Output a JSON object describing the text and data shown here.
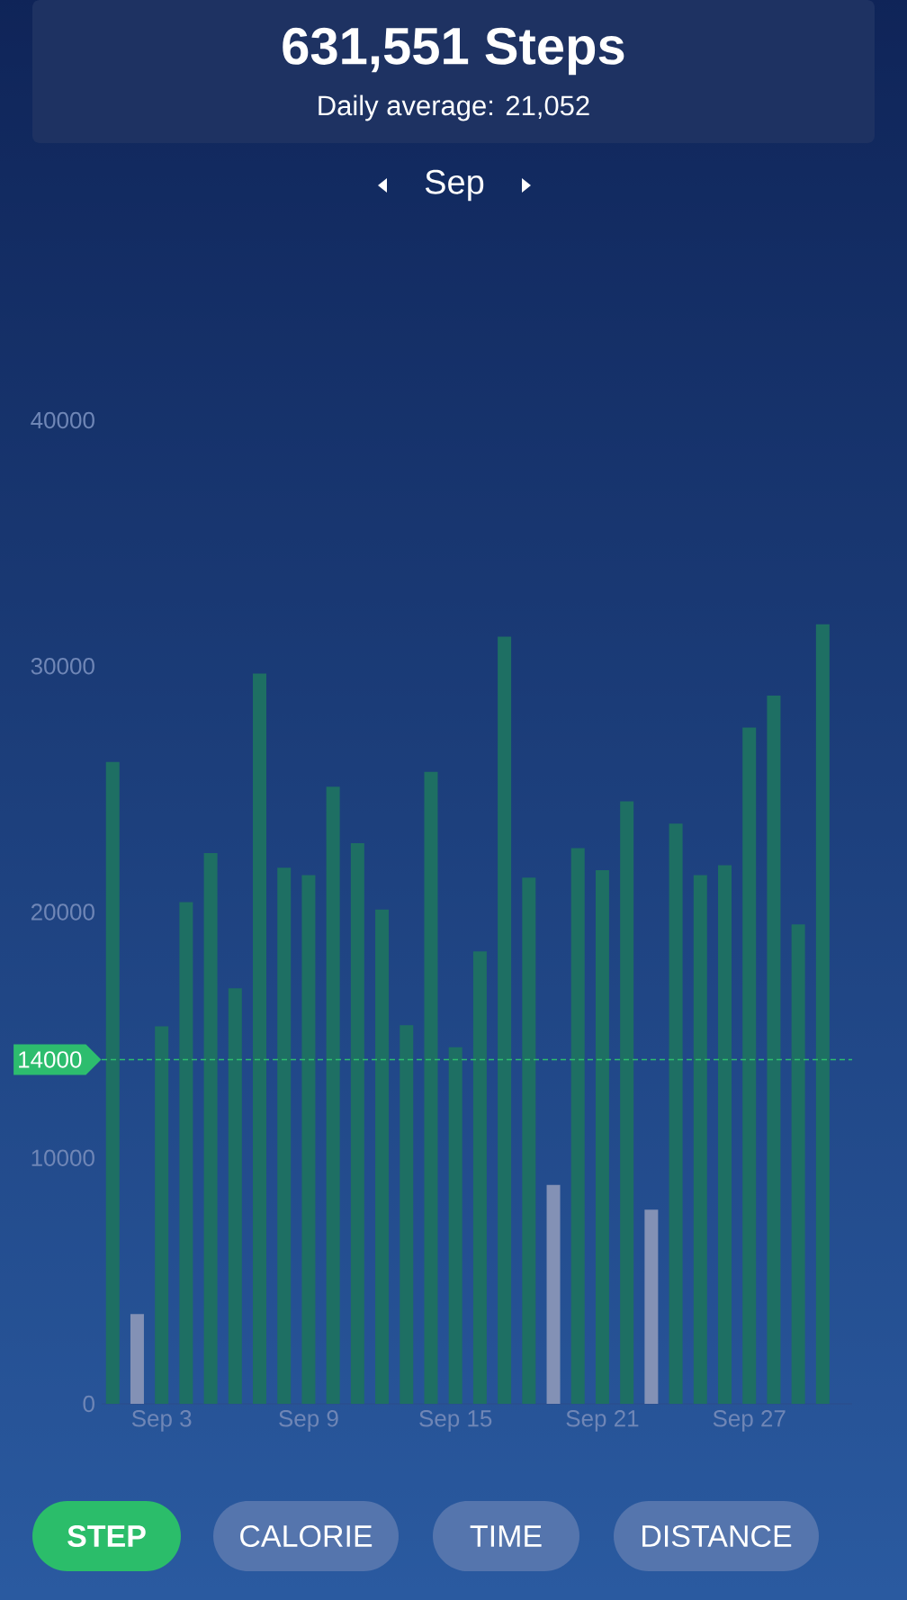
{
  "chart_data": {
    "type": "bar",
    "title": "631,551 Steps",
    "subtitle": "Daily average:   21,052",
    "categories": [
      null,
      null,
      "Sep 3",
      null,
      null,
      null,
      null,
      null,
      "Sep 9",
      null,
      null,
      null,
      null,
      null,
      "Sep 15",
      null,
      null,
      null,
      null,
      null,
      "Sep 21",
      null,
      null,
      null,
      null,
      null,
      "Sep 27",
      null,
      null,
      null
    ],
    "values": [
      26100,
      3650,
      15350,
      20400,
      22400,
      16900,
      29700,
      21800,
      21500,
      25100,
      22800,
      20100,
      15400,
      25700,
      14500,
      18400,
      31200,
      21400,
      8900,
      22600,
      21700,
      24500,
      7900,
      23600,
      21500,
      21900,
      27500,
      28800,
      19500,
      31700
    ],
    "colors": [
      "#1e6f63",
      "#8391b5",
      "#1e6f63",
      "#1e6f63",
      "#1e6f63",
      "#1e6f63",
      "#1e6f63",
      "#1e6f63",
      "#1e6f63",
      "#1e6f63",
      "#1e6f63",
      "#1e6f63",
      "#1e6f63",
      "#1e6f63",
      "#1e6f63",
      "#1e6f63",
      "#1e6f63",
      "#1e6f63",
      "#8391b5",
      "#1e6f63",
      "#1e6f63",
      "#1e6f63",
      "#8391b5",
      "#1e6f63",
      "#1e6f63",
      "#1e6f63",
      "#1e6f63",
      "#1e6f63",
      "#1e6f63",
      "#1e6f63"
    ],
    "ylim": [
      0,
      40000
    ],
    "yticks": [
      0,
      10000,
      20000,
      30000,
      40000
    ],
    "ref_lines": [
      {
        "axis": "y",
        "value": 14000,
        "label": "14000",
        "color": "#2dbd6e",
        "line_style": "dashed"
      }
    ],
    "annotations": [
      "Sep",
      "STEP",
      "CALORIE",
      "TIME",
      "DISTANCE"
    ]
  }
}
